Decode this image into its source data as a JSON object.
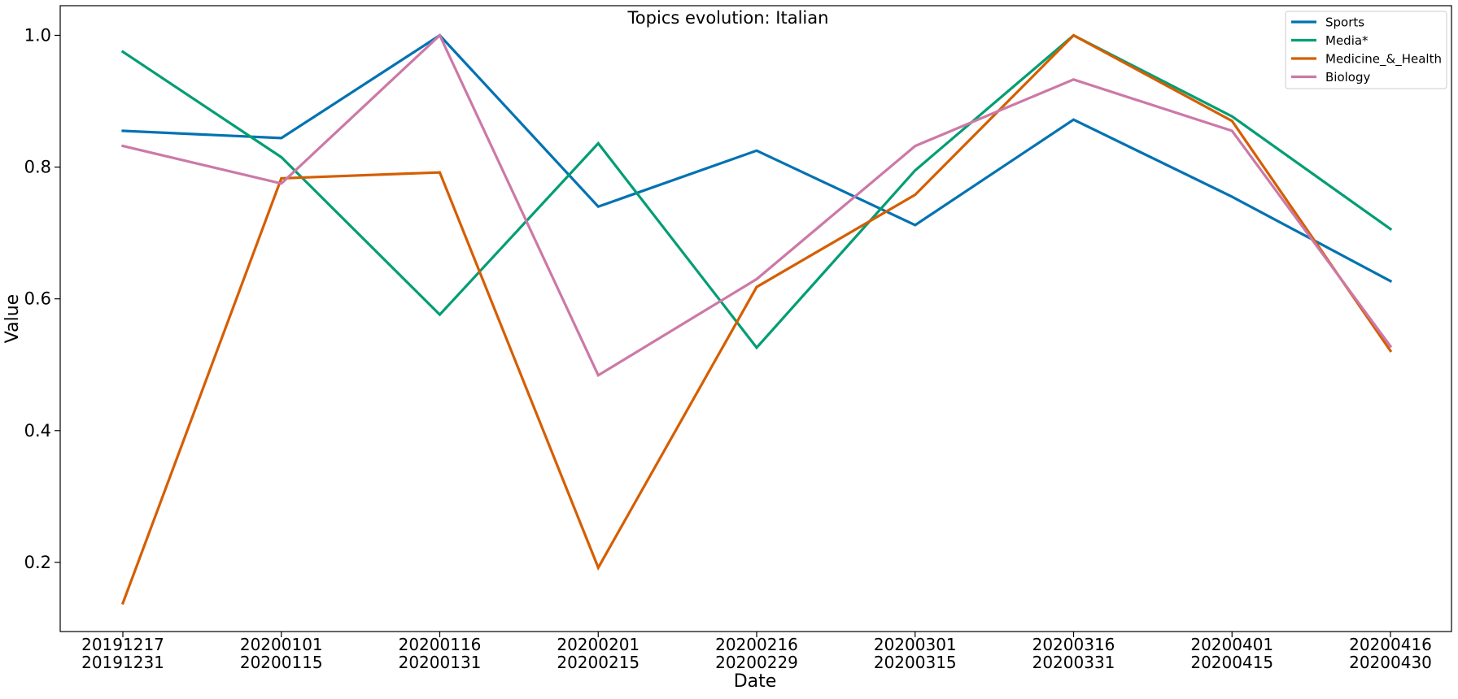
{
  "chart_data": {
    "type": "line",
    "title": "Topics evolution: Italian",
    "xlabel": "Date",
    "ylabel": "Value",
    "categories": [
      [
        "20191217",
        "20191231"
      ],
      [
        "20200101",
        "20200115"
      ],
      [
        "20200116",
        "20200131"
      ],
      [
        "20200201",
        "20200215"
      ],
      [
        "20200216",
        "20200229"
      ],
      [
        "20200301",
        "20200315"
      ],
      [
        "20200316",
        "20200331"
      ],
      [
        "20200401",
        "20200415"
      ],
      [
        "20200416",
        "20200430"
      ]
    ],
    "ylim": [
      0.095,
      1.045
    ],
    "yticks": [
      0.2,
      0.4,
      0.6,
      0.8,
      1.0
    ],
    "ytick_labels": [
      "0.2",
      "0.4",
      "0.6",
      "0.8",
      "1.0"
    ],
    "grid": false,
    "legend_position": "top-right",
    "series": [
      {
        "name": "Sports",
        "color": "#0072B2",
        "values": [
          0.855,
          0.844,
          1.0,
          0.74,
          0.825,
          0.712,
          0.872,
          0.755,
          0.627
        ]
      },
      {
        "name": "Media*",
        "color": "#009E73",
        "values": [
          0.975,
          0.815,
          0.576,
          0.836,
          0.526,
          0.795,
          1.0,
          0.877,
          0.706
        ]
      },
      {
        "name": "Medicine_&_Health",
        "color": "#D55E00",
        "values": [
          0.138,
          0.783,
          0.792,
          0.192,
          0.618,
          0.758,
          1.0,
          0.87,
          0.521
        ]
      },
      {
        "name": "Biology",
        "color": "#CC79A7",
        "values": [
          0.832,
          0.775,
          1.0,
          0.484,
          0.63,
          0.832,
          0.933,
          0.855,
          0.528
        ]
      }
    ]
  }
}
